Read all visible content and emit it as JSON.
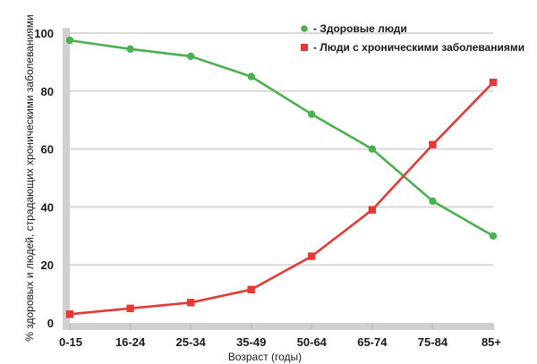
{
  "chart_data": {
    "type": "line",
    "title": "",
    "xlabel": "Возраст (годы)",
    "ylabel": "% здоровых и людей, страдающих хроническими заболеваниями",
    "categories": [
      "0-15",
      "16-24",
      "25-34",
      "35-49",
      "50-64",
      "65-74",
      "75-84",
      "85+"
    ],
    "ylim": [
      0,
      100
    ],
    "yticks": [
      0,
      20,
      40,
      60,
      80,
      100
    ],
    "grid": true,
    "legend_position": "top-right",
    "series": [
      {
        "name": "- Здоровые люди",
        "color": "#4caf50",
        "marker": "circle",
        "values": [
          97.5,
          94.5,
          92,
          85,
          72,
          60,
          42,
          30
        ]
      },
      {
        "name": "- Люди с хроническими заболеваниями",
        "color": "#e53935",
        "marker": "square",
        "values": [
          3,
          5,
          7,
          11.5,
          23,
          39,
          61.5,
          83
        ]
      }
    ]
  }
}
